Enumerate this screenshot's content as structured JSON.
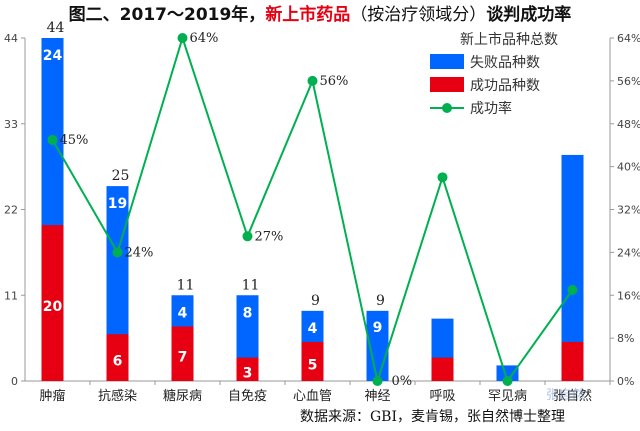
{
  "title": {
    "part1": "图二、2017～2019年，",
    "highlight": "新上市药品",
    "part2": "（按治疗领域分）",
    "part3": "谈判成功率"
  },
  "source": "数据来源：GBI，麦肯锡，张自然博士整理",
  "watermark": "张自然",
  "colors": {
    "total": "#0066ff",
    "success": "#e60012",
    "rate": "#00b050"
  },
  "chart_data": {
    "type": "bar",
    "categories": [
      "肿瘤",
      "抗感染",
      "糖尿病",
      "自免疫",
      "心血管",
      "神经",
      "呼吸",
      "罕见病",
      "张自然"
    ],
    "series": [
      {
        "name": "新上市品种总数",
        "role": "total",
        "values": [
          44,
          25,
          11,
          11,
          9,
          9,
          8,
          2,
          29
        ],
        "labels": [
          "44",
          "25",
          "11",
          "11",
          "9",
          "9",
          "",
          "",
          ""
        ]
      },
      {
        "name": "失败品种数",
        "role": "failed",
        "values": [
          24,
          19,
          4,
          8,
          4,
          9,
          5,
          2,
          24
        ],
        "labels": [
          "24",
          "19",
          "4",
          "8",
          "4",
          "9",
          "",
          "",
          ""
        ]
      },
      {
        "name": "成功品种数",
        "role": "success",
        "values": [
          20,
          6,
          7,
          3,
          5,
          0,
          3,
          0,
          5
        ],
        "labels": [
          "20",
          "6",
          "7",
          "3",
          "5",
          "",
          "",
          "",
          ""
        ]
      },
      {
        "name": "成功率",
        "role": "rate",
        "type": "line",
        "axis": "right",
        "values": [
          45,
          24,
          64,
          27,
          56,
          0,
          38,
          0,
          17
        ],
        "labels": [
          "45%",
          "24%",
          "64%",
          "27%",
          "56%",
          "0%",
          "",
          "",
          ""
        ]
      }
    ],
    "y_left": {
      "ylim": [
        0,
        44
      ],
      "ticks": [
        "0",
        "11",
        "22",
        "33",
        "44"
      ]
    },
    "y_right": {
      "ylim": [
        0,
        64
      ],
      "ticks": [
        "0%",
        "8%",
        "16%",
        "24%",
        "32%",
        "40%",
        "48%",
        "56%",
        "64%"
      ]
    },
    "legend_position": "top-right",
    "grid": false
  }
}
